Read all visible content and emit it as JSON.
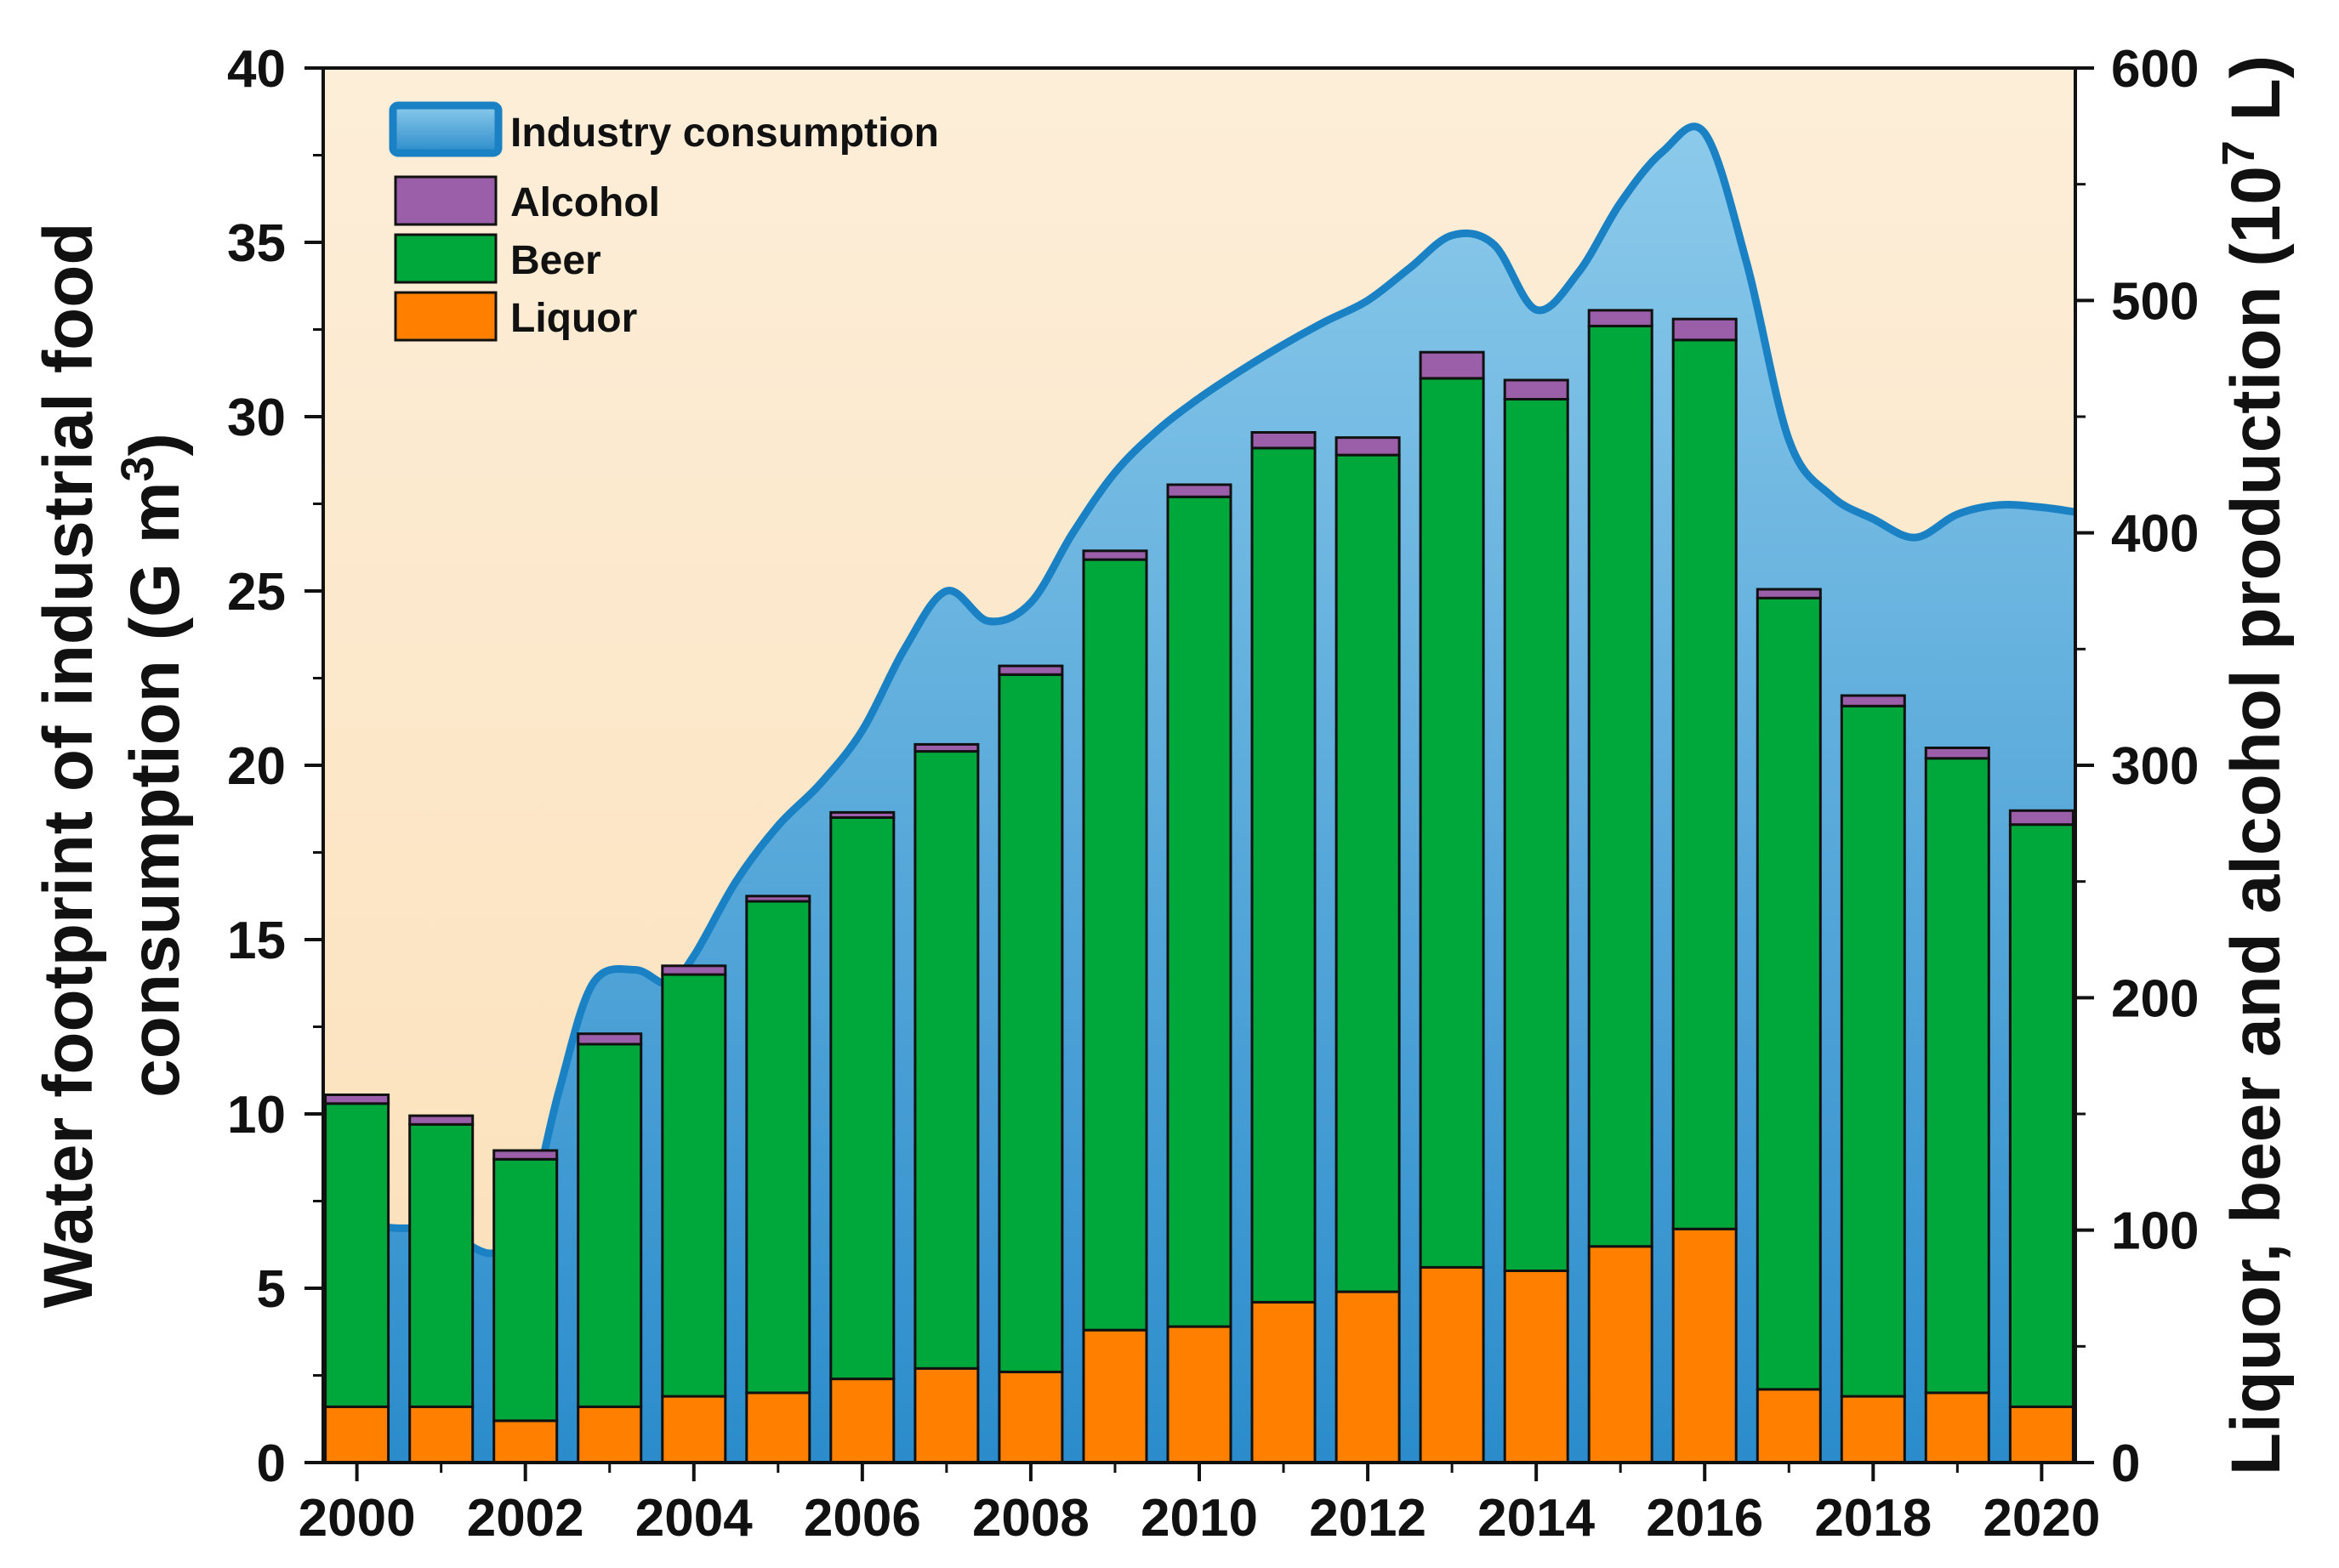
{
  "chart_data": {
    "type": "bar",
    "stacked": true,
    "title": "",
    "xlabel": "",
    "ylabel": "Water footprint of industrial food consumption (G m³)",
    "ylabel_line1": "Water footprint of industrial food",
    "ylabel_line2_prefix": "consumption (G m",
    "ylabel_line2_sup": "3",
    "ylabel_line2_suffix": ")",
    "y2label": "Liquor, beer and alcohol production (10⁷ L)",
    "y2label_prefix": "Liquor, beer and alcohol production (10",
    "y2label_sup": "7",
    "y2label_suffix": " L)",
    "ylim": [
      0,
      40
    ],
    "y2lim": [
      0,
      600
    ],
    "yticks": [
      "0",
      "5",
      "10",
      "15",
      "20",
      "25",
      "30",
      "35",
      "40"
    ],
    "y2ticks": [
      "0",
      "100",
      "200",
      "300",
      "400",
      "500",
      "600"
    ],
    "xticks": [
      "2000",
      "2002",
      "2004",
      "2006",
      "2008",
      "2010",
      "2012",
      "2014",
      "2016",
      "2018",
      "2020"
    ],
    "years": [
      2000,
      2001,
      2002,
      2003,
      2004,
      2005,
      2006,
      2007,
      2008,
      2009,
      2010,
      2011,
      2012,
      2013,
      2014,
      2015,
      2016,
      2017,
      2018,
      2019,
      2020
    ],
    "legend_position": "top-left",
    "legend": [
      {
        "key": "industry",
        "label": "Industry consumption"
      },
      {
        "key": "alcohol",
        "label": "Alcohol"
      },
      {
        "key": "beer",
        "label": "Beer"
      },
      {
        "key": "liquor",
        "label": "Liquor"
      }
    ],
    "series": [
      {
        "name": "Liquor",
        "key": "liquor",
        "axis": "left",
        "color": "#ff7f00",
        "values": [
          1.6,
          1.6,
          1.2,
          1.6,
          1.9,
          2.0,
          2.4,
          2.7,
          2.6,
          3.8,
          3.9,
          4.6,
          4.9,
          5.6,
          5.5,
          6.2,
          6.7,
          2.1,
          1.9,
          2.0,
          1.6
        ]
      },
      {
        "name": "Beer",
        "key": "beer",
        "axis": "left",
        "color": "#00a83c",
        "values": [
          8.7,
          8.1,
          7.5,
          10.4,
          12.1,
          14.1,
          16.1,
          17.7,
          20.0,
          22.1,
          23.8,
          24.5,
          24.0,
          25.5,
          25.0,
          26.4,
          25.5,
          22.7,
          19.8,
          18.2,
          16.7
        ]
      },
      {
        "name": "Alcohol",
        "key": "alcohol",
        "axis": "left",
        "color": "#9b5ea8",
        "values": [
          0.25,
          0.25,
          0.25,
          0.3,
          0.25,
          0.15,
          0.15,
          0.2,
          0.25,
          0.25,
          0.35,
          0.45,
          0.5,
          0.75,
          0.55,
          0.45,
          0.6,
          0.25,
          0.3,
          0.3,
          0.4
        ]
      },
      {
        "name": "Industry consumption",
        "key": "industry",
        "axis": "right",
        "type": "area",
        "color": "#1a82c4",
        "x": [
          1999.6,
          2000.4,
          2001.0,
          2001.6,
          2002.0,
          2002.4,
          2002.8,
          2003.3,
          2003.7,
          2004.0,
          2004.5,
          2005.0,
          2005.5,
          2006.0,
          2006.5,
          2007.0,
          2007.5,
          2008.0,
          2008.5,
          2009.0,
          2009.5,
          2010.0,
          2010.5,
          2011.0,
          2011.5,
          2012.0,
          2012.5,
          2013.0,
          2013.5,
          2014.0,
          2014.5,
          2015.0,
          2015.5,
          2016.0,
          2016.5,
          2017.0,
          2017.5,
          2018.0,
          2018.5,
          2019.0,
          2019.5,
          2020.0,
          2020.4
        ],
        "values": [
          105,
          101,
          100,
          90,
          103,
          160,
          206,
          212,
          206,
          218,
          250,
          274,
          292,
          315,
          350,
          375,
          362,
          370,
          400,
          426,
          444,
          458,
          470,
          481,
          491,
          500,
          514,
          528,
          524,
          496,
          512,
          542,
          564,
          572,
          516,
          440,
          416,
          406,
          398,
          408,
          412,
          411,
          409
        ]
      }
    ]
  }
}
